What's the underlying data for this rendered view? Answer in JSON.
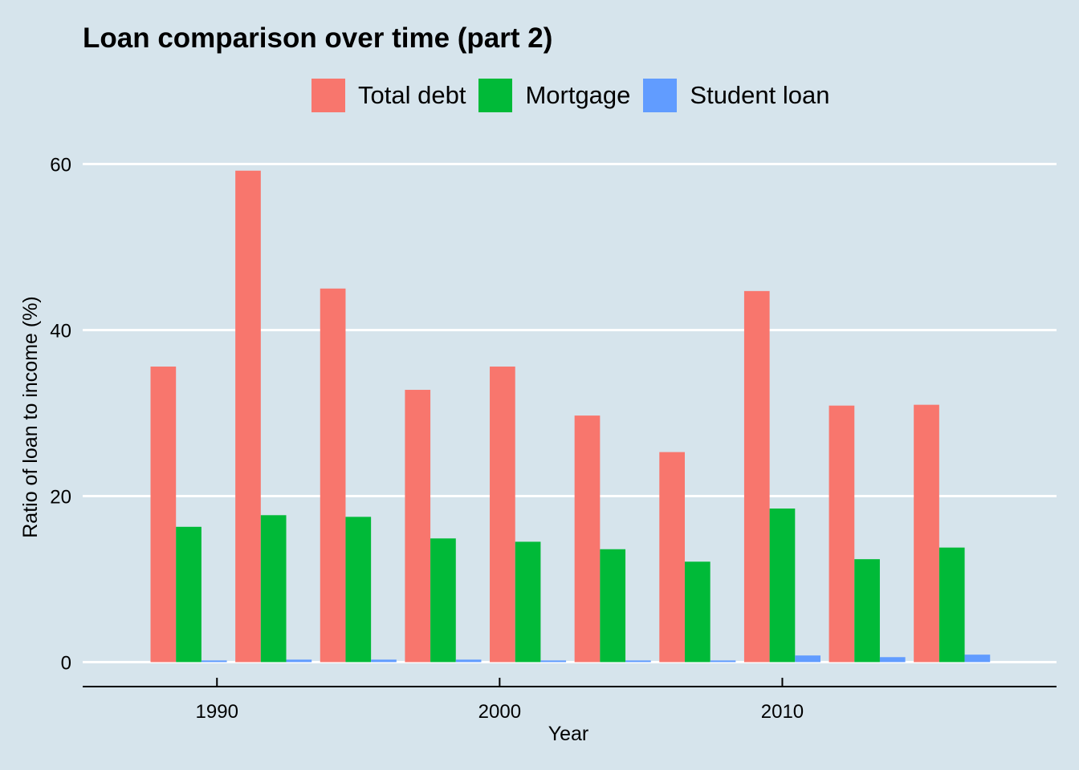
{
  "chart_data": {
    "type": "bar",
    "title": "Loan comparison over time (part 2)",
    "xlabel": "Year",
    "ylabel": "Ratio of loan to income (%)",
    "x": [
      1989,
      1992,
      1995,
      1998,
      2001,
      2004,
      2007,
      2010,
      2013,
      2016
    ],
    "x_ticks": [
      1990,
      2000,
      2010
    ],
    "x_tick_labels": [
      "1990",
      "2000",
      "2010"
    ],
    "xlim": [
      1985.25,
      2019.7
    ],
    "y_ticks": [
      0,
      20,
      40,
      60
    ],
    "y_tick_labels": [
      "0",
      "20",
      "40",
      "60"
    ],
    "ylim": [
      -3,
      62
    ],
    "grid": "horizontal major",
    "legend_position": "top",
    "series": [
      {
        "name": "Total debt",
        "color": "#f8766d",
        "values": [
          35.6,
          59.2,
          45.0,
          32.8,
          35.6,
          29.7,
          25.3,
          44.7,
          30.9,
          31.0
        ]
      },
      {
        "name": "Mortgage",
        "color": "#00ba38",
        "values": [
          16.3,
          17.7,
          17.5,
          14.9,
          14.5,
          13.6,
          12.1,
          18.5,
          12.4,
          13.8
        ]
      },
      {
        "name": "Student loan",
        "color": "#619cff",
        "values": [
          0.2,
          0.3,
          0.3,
          0.3,
          0.2,
          0.2,
          0.2,
          0.8,
          0.6,
          0.9
        ]
      }
    ]
  }
}
